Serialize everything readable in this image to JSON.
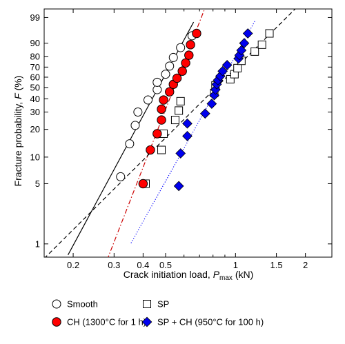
{
  "chart_data": {
    "type": "scatter",
    "title": "",
    "xlabel": "Crack initiation load, ",
    "xlabel_var": "P",
    "xlabel_sub": "max",
    "xlabel_unit": " (kN)",
    "ylabel": "Fracture probability, ",
    "ylabel_var": "F",
    "ylabel_unit": " (%)",
    "x_scale": "log",
    "y_scale": "weibull",
    "xlim": [
      0.15,
      2.6
    ],
    "ylim": [
      0.7,
      99.7
    ],
    "x_ticks": [
      {
        "value": 0.2,
        "label": "0.2"
      },
      {
        "value": 0.3,
        "label": "0.3"
      },
      {
        "value": 0.4,
        "label": "0.4"
      },
      {
        "value": 0.5,
        "label": "0.5"
      },
      {
        "value": 1,
        "label": "1"
      },
      {
        "value": 1.5,
        "label": "1.5"
      },
      {
        "value": 2,
        "label": "2"
      }
    ],
    "y_ticks": [
      {
        "value": 1,
        "label": "1"
      },
      {
        "value": 5,
        "label": "5"
      },
      {
        "value": 10,
        "label": "10"
      },
      {
        "value": 20,
        "label": "20"
      },
      {
        "value": 30,
        "label": "30"
      },
      {
        "value": 40,
        "label": "40"
      },
      {
        "value": 50,
        "label": "50"
      },
      {
        "value": 60,
        "label": "60"
      },
      {
        "value": 70,
        "label": "70"
      },
      {
        "value": 80,
        "label": "80"
      },
      {
        "value": 90,
        "label": "90"
      },
      {
        "value": 99,
        "label": "99"
      }
    ],
    "x_minor_ticks": [
      0.6,
      0.7,
      0.8,
      0.9
    ],
    "legend_position": "bottom",
    "series": [
      {
        "name": "Smooth",
        "marker": "circle-open",
        "color": "#000000",
        "line": {
          "style": "solid",
          "color": "#000000",
          "x_start": 0.19,
          "x_end": 0.66
        },
        "points": [
          {
            "x": 0.32,
            "y": 6
          },
          {
            "x": 0.35,
            "y": 14
          },
          {
            "x": 0.37,
            "y": 22
          },
          {
            "x": 0.38,
            "y": 30
          },
          {
            "x": 0.42,
            "y": 39
          },
          {
            "x": 0.46,
            "y": 48
          },
          {
            "x": 0.46,
            "y": 55
          },
          {
            "x": 0.5,
            "y": 63
          },
          {
            "x": 0.52,
            "y": 71
          },
          {
            "x": 0.54,
            "y": 79
          },
          {
            "x": 0.58,
            "y": 87
          },
          {
            "x": 0.65,
            "y": 94
          }
        ]
      },
      {
        "name": "CH (1300°C for 1 h)",
        "marker": "circle-filled",
        "color": "#ff0000",
        "line": {
          "style": "dashdot",
          "color": "#cc0000",
          "x_start": 0.27,
          "x_end": 0.77
        },
        "points": [
          {
            "x": 0.4,
            "y": 5
          },
          {
            "x": 0.43,
            "y": 12
          },
          {
            "x": 0.46,
            "y": 18
          },
          {
            "x": 0.48,
            "y": 25
          },
          {
            "x": 0.48,
            "y": 32
          },
          {
            "x": 0.49,
            "y": 39
          },
          {
            "x": 0.52,
            "y": 46
          },
          {
            "x": 0.54,
            "y": 53
          },
          {
            "x": 0.56,
            "y": 59
          },
          {
            "x": 0.59,
            "y": 66
          },
          {
            "x": 0.61,
            "y": 74
          },
          {
            "x": 0.63,
            "y": 81
          },
          {
            "x": 0.64,
            "y": 89
          },
          {
            "x": 0.68,
            "y": 95
          }
        ]
      },
      {
        "name": "SP",
        "marker": "square-open",
        "color": "#000000",
        "line": {
          "style": "dashed",
          "color": "#000000",
          "x_start": 0.15,
          "x_end": 2.6
        },
        "points": [
          {
            "x": 0.41,
            "y": 5
          },
          {
            "x": 0.48,
            "y": 12
          },
          {
            "x": 0.49,
            "y": 18
          },
          {
            "x": 0.55,
            "y": 25
          },
          {
            "x": 0.57,
            "y": 31
          },
          {
            "x": 0.58,
            "y": 38
          },
          {
            "x": 0.81,
            "y": 45
          },
          {
            "x": 0.82,
            "y": 52
          },
          {
            "x": 0.95,
            "y": 58
          },
          {
            "x": 0.99,
            "y": 63
          },
          {
            "x": 1.02,
            "y": 69
          },
          {
            "x": 1.06,
            "y": 76
          },
          {
            "x": 1.21,
            "y": 84
          },
          {
            "x": 1.3,
            "y": 89
          },
          {
            "x": 1.4,
            "y": 95
          }
        ]
      },
      {
        "name": "SP + CH (950°C for 100 h)",
        "marker": "diamond-filled",
        "color": "#0000ee",
        "line": {
          "style": "dotted",
          "color": "#0000ff",
          "x_start": 0.355,
          "x_end": 1.22
        },
        "points": [
          {
            "x": 0.57,
            "y": 4.7
          },
          {
            "x": 0.58,
            "y": 11
          },
          {
            "x": 0.62,
            "y": 17
          },
          {
            "x": 0.62,
            "y": 23
          },
          {
            "x": 0.74,
            "y": 29
          },
          {
            "x": 0.79,
            "y": 36
          },
          {
            "x": 0.81,
            "y": 43
          },
          {
            "x": 0.82,
            "y": 48
          },
          {
            "x": 0.83,
            "y": 53
          },
          {
            "x": 0.84,
            "y": 57
          },
          {
            "x": 0.86,
            "y": 61
          },
          {
            "x": 0.88,
            "y": 66
          },
          {
            "x": 0.92,
            "y": 72
          },
          {
            "x": 1.03,
            "y": 78
          },
          {
            "x": 1.04,
            "y": 81
          },
          {
            "x": 1.06,
            "y": 85
          },
          {
            "x": 1.09,
            "y": 90
          },
          {
            "x": 1.13,
            "y": 95
          }
        ]
      }
    ]
  }
}
